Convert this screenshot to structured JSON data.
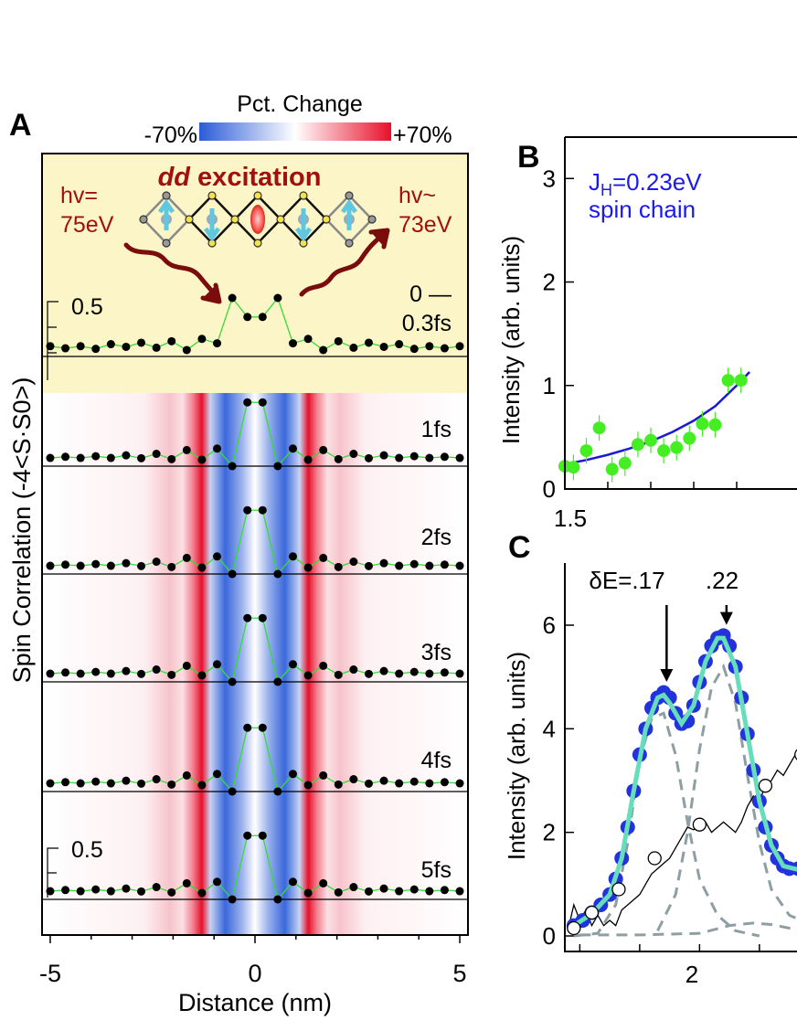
{
  "chart_data": [
    {
      "panel": "A",
      "type": "heatmap",
      "colorbar": {
        "title": "Pct. Change",
        "min_label": "-70%",
        "max_label": "+70%",
        "colors": [
          "#2a5bd7",
          "#ffffff",
          "#e8102a"
        ]
      },
      "xlabel": "Distance (nm)",
      "ylabel": "Spin Correlation (-4<S·S0>)",
      "xlim": [
        -5.2,
        5.2
      ],
      "xticks": [
        -5,
        0,
        5
      ],
      "scale_bar_labels": [
        "0.5",
        "0.5"
      ],
      "inset": {
        "title_italic": "dd",
        "title_rest": " excitation",
        "left_photon": [
          "hv=",
          "75eV"
        ],
        "right_photon": [
          "hv~",
          "73eV"
        ],
        "highlight_color": "#fbf5c8"
      },
      "traces": [
        {
          "label_lines": [
            "0 —",
            "0.3fs"
          ],
          "values": [
            0.35,
            0.28,
            0.35,
            0.26,
            0.42,
            0.33,
            0.47,
            0.3,
            0.52,
            0.22,
            0.6,
            0.45,
            2.0,
            1.35,
            1.35,
            2.0,
            0.45,
            0.6,
            0.22,
            0.52,
            0.3,
            0.47,
            0.33,
            0.42,
            0.26,
            0.35,
            0.28,
            0.35
          ]
        },
        {
          "label_lines": [
            "1fs"
          ],
          "values": [
            0.28,
            0.32,
            0.28,
            0.34,
            0.28,
            0.37,
            0.27,
            0.42,
            0.24,
            0.55,
            0.22,
            0.6,
            0.0,
            2.18,
            2.18,
            0.0,
            0.6,
            0.22,
            0.55,
            0.24,
            0.42,
            0.27,
            0.37,
            0.28,
            0.34,
            0.28,
            0.32,
            0.28
          ]
        },
        {
          "label_lines": [
            "2fs"
          ],
          "values": [
            0.28,
            0.32,
            0.28,
            0.34,
            0.28,
            0.37,
            0.27,
            0.42,
            0.24,
            0.55,
            0.22,
            0.6,
            0.0,
            2.18,
            2.18,
            0.0,
            0.6,
            0.22,
            0.55,
            0.24,
            0.42,
            0.27,
            0.37,
            0.28,
            0.34,
            0.28,
            0.32,
            0.28
          ]
        },
        {
          "label_lines": [
            "3fs"
          ],
          "values": [
            0.28,
            0.32,
            0.28,
            0.34,
            0.28,
            0.37,
            0.27,
            0.42,
            0.24,
            0.55,
            0.22,
            0.6,
            0.0,
            2.18,
            2.18,
            0.0,
            0.6,
            0.22,
            0.55,
            0.24,
            0.42,
            0.27,
            0.37,
            0.28,
            0.34,
            0.28,
            0.32,
            0.28
          ]
        },
        {
          "label_lines": [
            "4fs"
          ],
          "values": [
            0.28,
            0.32,
            0.28,
            0.34,
            0.28,
            0.37,
            0.27,
            0.42,
            0.24,
            0.55,
            0.22,
            0.6,
            0.0,
            2.18,
            2.18,
            0.0,
            0.6,
            0.22,
            0.55,
            0.24,
            0.42,
            0.27,
            0.37,
            0.28,
            0.34,
            0.28,
            0.32,
            0.28
          ]
        },
        {
          "label_lines": [
            "5fs"
          ],
          "values": [
            0.28,
            0.32,
            0.28,
            0.34,
            0.28,
            0.37,
            0.27,
            0.42,
            0.24,
            0.55,
            0.22,
            0.6,
            0.0,
            2.18,
            2.18,
            0.0,
            0.6,
            0.22,
            0.55,
            0.24,
            0.42,
            0.27,
            0.37,
            0.28,
            0.34,
            0.28,
            0.32,
            0.28
          ]
        }
      ],
      "colors": {
        "dots": "#000000",
        "line": "#33dd33"
      }
    },
    {
      "panel": "B",
      "type": "scatter",
      "annotation_lines": [
        "J_H=0.23eV",
        "spin chain"
      ],
      "ylabel": "Intensity (arb. units)",
      "ylim": [
        0,
        3.4
      ],
      "xlim": [
        1.5,
        2.1
      ],
      "yticks": [
        0,
        1,
        2,
        3
      ],
      "xtick_label": "1.5",
      "points": [
        {
          "x": 1.5,
          "y": 0.22
        },
        {
          "x": 1.52,
          "y": 0.21
        },
        {
          "x": 1.55,
          "y": 0.37
        },
        {
          "x": 1.58,
          "y": 0.59
        },
        {
          "x": 1.61,
          "y": 0.19
        },
        {
          "x": 1.64,
          "y": 0.25
        },
        {
          "x": 1.67,
          "y": 0.43
        },
        {
          "x": 1.7,
          "y": 0.47
        },
        {
          "x": 1.73,
          "y": 0.37
        },
        {
          "x": 1.76,
          "y": 0.4
        },
        {
          "x": 1.79,
          "y": 0.49
        },
        {
          "x": 1.82,
          "y": 0.63
        },
        {
          "x": 1.85,
          "y": 0.62
        },
        {
          "x": 1.88,
          "y": 1.05
        },
        {
          "x": 1.91,
          "y": 1.05
        }
      ],
      "fit": [
        {
          "x": 1.5,
          "y": 0.24
        },
        {
          "x": 1.55,
          "y": 0.28
        },
        {
          "x": 1.6,
          "y": 0.33
        },
        {
          "x": 1.65,
          "y": 0.39
        },
        {
          "x": 1.7,
          "y": 0.46
        },
        {
          "x": 1.75,
          "y": 0.55
        },
        {
          "x": 1.8,
          "y": 0.66
        },
        {
          "x": 1.85,
          "y": 0.8
        },
        {
          "x": 1.9,
          "y": 1.0
        },
        {
          "x": 1.93,
          "y": 1.13
        }
      ],
      "colors": {
        "points": "#44ee22",
        "fit": "#1a1ad0",
        "annotation": "#1a1aee"
      }
    },
    {
      "panel": "C",
      "type": "line",
      "ylabel": "Intensity (arb. units)",
      "ylim": [
        -0.3,
        7.2
      ],
      "xlim": [
        1.55,
        2.35
      ],
      "yticks": [
        0,
        2,
        4,
        6
      ],
      "xtick_label": "2",
      "arrows": [
        {
          "label": "δE=.17",
          "x": 1.89,
          "y": 4.8
        },
        {
          "label": ".22",
          "x": 2.09,
          "y": 5.9
        }
      ],
      "blue_points": [
        {
          "x": 1.58,
          "y": 0.2
        },
        {
          "x": 1.61,
          "y": 0.3
        },
        {
          "x": 1.64,
          "y": 0.45
        },
        {
          "x": 1.67,
          "y": 0.6
        },
        {
          "x": 1.7,
          "y": 0.8
        },
        {
          "x": 1.72,
          "y": 1.1
        },
        {
          "x": 1.74,
          "y": 1.5
        },
        {
          "x": 1.76,
          "y": 2.1
        },
        {
          "x": 1.78,
          "y": 2.8
        },
        {
          "x": 1.8,
          "y": 3.5
        },
        {
          "x": 1.82,
          "y": 4.0
        },
        {
          "x": 1.84,
          "y": 4.4
        },
        {
          "x": 1.86,
          "y": 4.6
        },
        {
          "x": 1.88,
          "y": 4.7
        },
        {
          "x": 1.9,
          "y": 4.6
        },
        {
          "x": 1.92,
          "y": 4.3
        },
        {
          "x": 1.94,
          "y": 4.1
        },
        {
          "x": 1.96,
          "y": 4.15
        },
        {
          "x": 1.98,
          "y": 4.45
        },
        {
          "x": 2.0,
          "y": 4.9
        },
        {
          "x": 2.02,
          "y": 5.3
        },
        {
          "x": 2.04,
          "y": 5.6
        },
        {
          "x": 2.06,
          "y": 5.75
        },
        {
          "x": 2.08,
          "y": 5.8
        },
        {
          "x": 2.1,
          "y": 5.6
        },
        {
          "x": 2.12,
          "y": 5.2
        },
        {
          "x": 2.14,
          "y": 4.6
        },
        {
          "x": 2.16,
          "y": 3.9
        },
        {
          "x": 2.18,
          "y": 3.2
        },
        {
          "x": 2.2,
          "y": 2.6
        },
        {
          "x": 2.22,
          "y": 2.1
        },
        {
          "x": 2.24,
          "y": 1.75
        },
        {
          "x": 2.26,
          "y": 1.5
        },
        {
          "x": 2.28,
          "y": 1.35
        },
        {
          "x": 2.3,
          "y": 1.3
        },
        {
          "x": 2.33,
          "y": 1.3
        }
      ],
      "fit": [
        {
          "x": 1.58,
          "y": 0.2
        },
        {
          "x": 1.62,
          "y": 0.35
        },
        {
          "x": 1.66,
          "y": 0.55
        },
        {
          "x": 1.7,
          "y": 0.8
        },
        {
          "x": 1.74,
          "y": 1.5
        },
        {
          "x": 1.78,
          "y": 2.8
        },
        {
          "x": 1.82,
          "y": 4.0
        },
        {
          "x": 1.86,
          "y": 4.6
        },
        {
          "x": 1.88,
          "y": 4.65
        },
        {
          "x": 1.9,
          "y": 4.5
        },
        {
          "x": 1.94,
          "y": 4.1
        },
        {
          "x": 1.98,
          "y": 4.45
        },
        {
          "x": 2.02,
          "y": 5.3
        },
        {
          "x": 2.06,
          "y": 5.75
        },
        {
          "x": 2.08,
          "y": 5.75
        },
        {
          "x": 2.12,
          "y": 5.2
        },
        {
          "x": 2.16,
          "y": 3.9
        },
        {
          "x": 2.2,
          "y": 2.6
        },
        {
          "x": 2.24,
          "y": 1.75
        },
        {
          "x": 2.28,
          "y": 1.35
        },
        {
          "x": 2.33,
          "y": 1.28
        }
      ],
      "dashed_components": [
        [
          {
            "x": 1.58,
            "y": 0.0
          },
          {
            "x": 1.66,
            "y": 0.05
          },
          {
            "x": 1.72,
            "y": 0.6
          },
          {
            "x": 1.76,
            "y": 1.8
          },
          {
            "x": 1.8,
            "y": 3.4
          },
          {
            "x": 1.84,
            "y": 4.2
          },
          {
            "x": 1.88,
            "y": 4.3
          },
          {
            "x": 1.92,
            "y": 3.5
          },
          {
            "x": 1.96,
            "y": 2.2
          },
          {
            "x": 2.0,
            "y": 1.1
          },
          {
            "x": 2.06,
            "y": 0.4
          },
          {
            "x": 2.12,
            "y": 0.1
          },
          {
            "x": 2.2,
            "y": 0.0
          }
        ],
        [
          {
            "x": 1.86,
            "y": 0.1
          },
          {
            "x": 1.92,
            "y": 0.8
          },
          {
            "x": 1.96,
            "y": 2.0
          },
          {
            "x": 2.0,
            "y": 3.6
          },
          {
            "x": 2.04,
            "y": 4.8
          },
          {
            "x": 2.08,
            "y": 5.2
          },
          {
            "x": 2.12,
            "y": 4.5
          },
          {
            "x": 2.16,
            "y": 3.1
          },
          {
            "x": 2.2,
            "y": 1.8
          },
          {
            "x": 2.24,
            "y": 0.9
          },
          {
            "x": 2.3,
            "y": 0.4
          },
          {
            "x": 2.34,
            "y": 0.3
          }
        ],
        [
          {
            "x": 1.6,
            "y": 0.02
          },
          {
            "x": 1.8,
            "y": 0.02
          },
          {
            "x": 2.0,
            "y": 0.05
          },
          {
            "x": 2.1,
            "y": 0.2
          },
          {
            "x": 2.18,
            "y": 0.25
          },
          {
            "x": 2.24,
            "y": 0.22
          },
          {
            "x": 2.3,
            "y": 0.15
          },
          {
            "x": 2.34,
            "y": 0.12
          }
        ]
      ],
      "black_line": [
        {
          "x": 1.56,
          "y": 0.1
        },
        {
          "x": 1.58,
          "y": 0.6
        },
        {
          "x": 1.6,
          "y": 0.3
        },
        {
          "x": 1.62,
          "y": 0.5
        },
        {
          "x": 1.64,
          "y": 0.2
        },
        {
          "x": 1.66,
          "y": 0.4
        },
        {
          "x": 1.68,
          "y": 0.2
        },
        {
          "x": 1.7,
          "y": 0.3
        },
        {
          "x": 1.72,
          "y": 0.2
        },
        {
          "x": 1.74,
          "y": 0.5
        },
        {
          "x": 1.76,
          "y": 0.6
        },
        {
          "x": 1.78,
          "y": 0.7
        },
        {
          "x": 1.8,
          "y": 0.8
        },
        {
          "x": 1.82,
          "y": 1.0
        },
        {
          "x": 1.84,
          "y": 1.2
        },
        {
          "x": 1.86,
          "y": 1.3
        },
        {
          "x": 1.88,
          "y": 1.4
        },
        {
          "x": 1.9,
          "y": 1.5
        },
        {
          "x": 1.92,
          "y": 1.7
        },
        {
          "x": 1.94,
          "y": 1.9
        },
        {
          "x": 1.96,
          "y": 2.1
        },
        {
          "x": 1.98,
          "y": 2.05
        },
        {
          "x": 2.0,
          "y": 2.1
        },
        {
          "x": 2.02,
          "y": 2.2
        },
        {
          "x": 2.04,
          "y": 2.0
        },
        {
          "x": 2.06,
          "y": 2.1
        },
        {
          "x": 2.08,
          "y": 2.2
        },
        {
          "x": 2.1,
          "y": 2.1
        },
        {
          "x": 2.12,
          "y": 2.0
        },
        {
          "x": 2.14,
          "y": 2.2
        },
        {
          "x": 2.16,
          "y": 2.5
        },
        {
          "x": 2.18,
          "y": 2.7
        },
        {
          "x": 2.2,
          "y": 2.6
        },
        {
          "x": 2.22,
          "y": 2.9
        },
        {
          "x": 2.24,
          "y": 3.0
        },
        {
          "x": 2.26,
          "y": 3.2
        },
        {
          "x": 2.28,
          "y": 3.1
        },
        {
          "x": 2.3,
          "y": 3.3
        },
        {
          "x": 2.32,
          "y": 3.5
        },
        {
          "x": 2.34,
          "y": 3.5
        }
      ],
      "open_circles": [
        {
          "x": 1.58,
          "y": 0.15
        },
        {
          "x": 1.64,
          "y": 0.45
        },
        {
          "x": 1.73,
          "y": 0.9
        },
        {
          "x": 1.85,
          "y": 1.5
        },
        {
          "x": 2.0,
          "y": 2.15
        },
        {
          "x": 2.22,
          "y": 2.9
        },
        {
          "x": 2.34,
          "y": 3.5
        }
      ],
      "colors": {
        "points": "#2233dd",
        "fit": "#66ddbb",
        "dashed": "#8e9fa4",
        "line": "#000000"
      }
    }
  ],
  "panel_labels": [
    "A",
    "B",
    "C"
  ]
}
